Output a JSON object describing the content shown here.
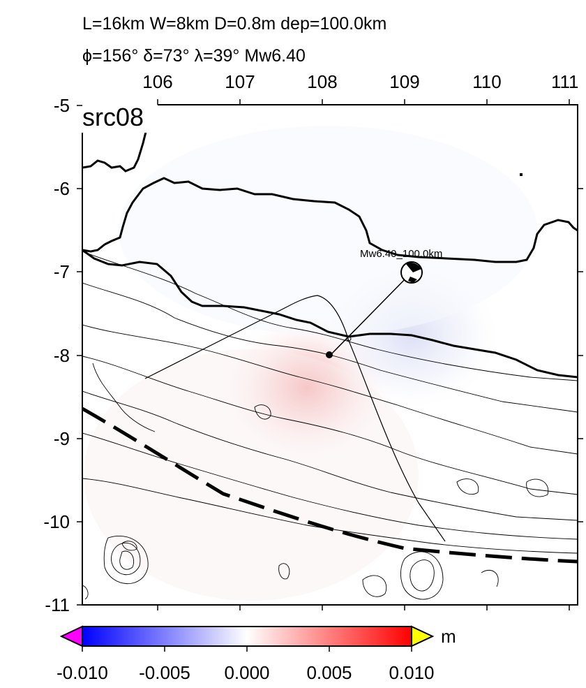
{
  "header": {
    "line1": "L=16km W=8km D=0.8m dep=100.0km",
    "line2": "ϕ=156° δ=73° λ=39° Mw6.40"
  },
  "map": {
    "source_label": "src08",
    "event_label": "Mw6.40_100.0km",
    "lon_ticks": [
      "106",
      "107",
      "108",
      "109",
      "110",
      "111"
    ],
    "lat_ticks": [
      "-5",
      "-6",
      "-7",
      "-8",
      "-9",
      "-10",
      "-11"
    ],
    "lon_range": [
      105.2,
      111.2
    ],
    "lat_range": [
      -11,
      -5
    ],
    "epicenter": {
      "lon": 109.1,
      "lat": -7.0
    },
    "fault_point": {
      "lon": 108.1,
      "lat": -8.0
    }
  },
  "colorbar": {
    "unit": "m",
    "tick_labels": [
      "-0.010",
      "-0.005",
      "0.000",
      "0.005",
      "0.010"
    ],
    "range": [
      -0.01,
      0.01
    ],
    "colors": {
      "min": "#0000ff",
      "mid": "#ffffff",
      "max": "#ff0000",
      "under": "#ff00ff",
      "over": "#ffff00"
    }
  }
}
